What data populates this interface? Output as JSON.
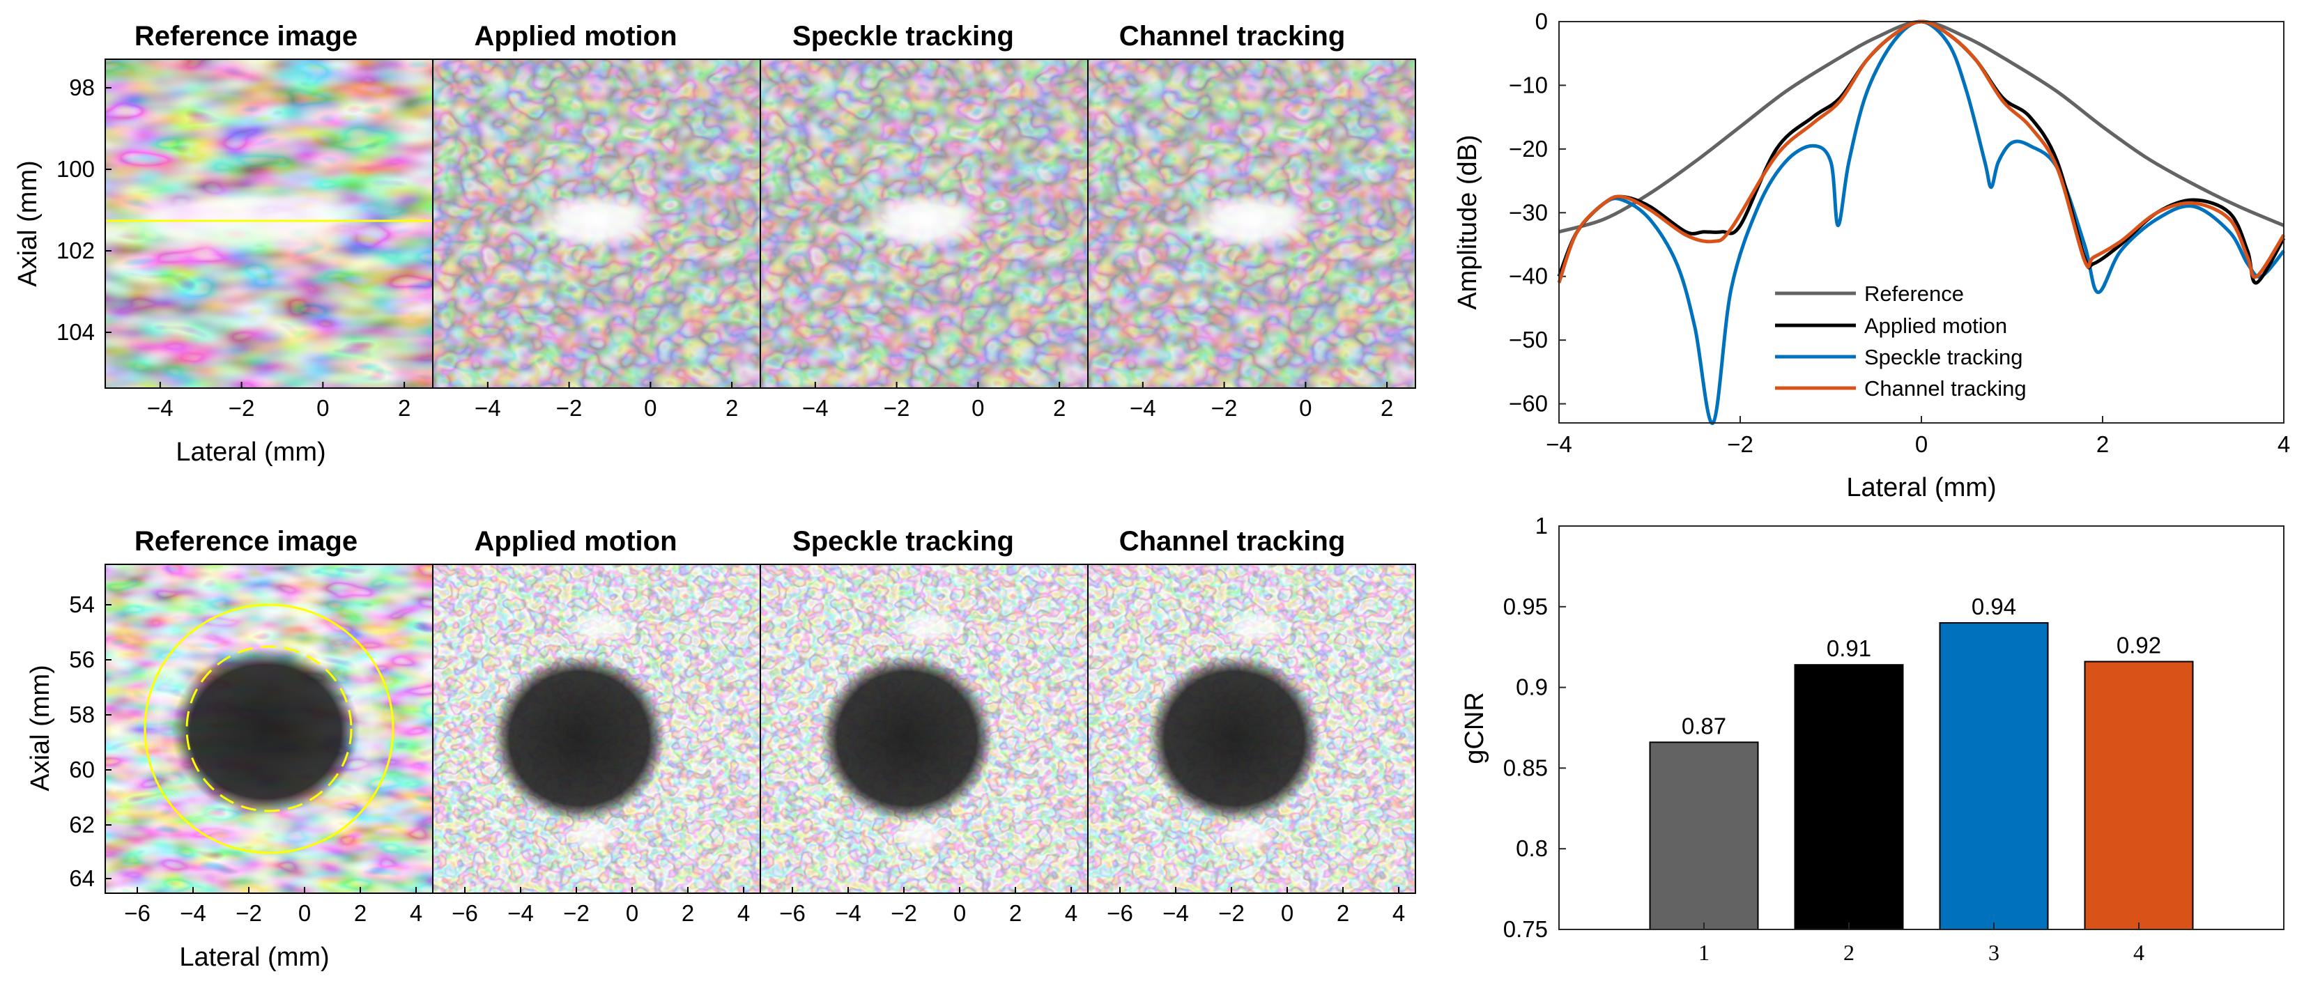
{
  "panels_top": {
    "titles": [
      "Reference image",
      "Applied motion",
      "Speckle tracking",
      "Channel tracking"
    ],
    "ylabel": "Axial (mm)",
    "xlabel": "Lateral (mm)",
    "yticks": [
      "98",
      "100",
      "102",
      "104"
    ],
    "xticks": [
      "−4",
      "−2",
      "0",
      "2"
    ]
  },
  "panels_bottom": {
    "titles": [
      "Reference image",
      "Applied motion",
      "Speckle tracking",
      "Channel tracking"
    ],
    "ylabel": "Axial (mm)",
    "xlabel": "Lateral (mm)",
    "yticks": [
      "54",
      "56",
      "58",
      "60",
      "62",
      "64"
    ],
    "xticks": [
      "−6",
      "−4",
      "−2",
      "0",
      "2",
      "4"
    ]
  },
  "colors": {
    "reference": "#636363",
    "applied": "#000000",
    "speckle": "#0072bd",
    "channel": "#d95319",
    "overlay": "#ffff00"
  },
  "chart_data": [
    {
      "type": "line",
      "title": "",
      "xlabel": "Lateral (mm)",
      "ylabel": "Amplitude (dB)",
      "xlim": [
        -4,
        4
      ],
      "ylim": [
        -63,
        0
      ],
      "xticks": [
        -4,
        -2,
        0,
        2,
        4
      ],
      "xtick_labels": [
        "−4",
        "−2",
        "0",
        "2",
        "4"
      ],
      "yticks": [
        0,
        -10,
        -20,
        -30,
        -40,
        -50,
        -60
      ],
      "ytick_labels": [
        "0",
        "−10",
        "−20",
        "−30",
        "−40",
        "−50",
        "−60"
      ],
      "legend": {
        "placement": "lower-center"
      },
      "series": [
        {
          "name": "Reference",
          "color_key": "reference",
          "x": [
            -4,
            -3.5,
            -3,
            -2.5,
            -2,
            -1.5,
            -1,
            -0.5,
            0,
            0.5,
            1,
            1.5,
            2,
            2.5,
            3,
            3.5,
            4
          ],
          "y": [
            -33,
            -31,
            -27,
            -22,
            -16.5,
            -11,
            -6.5,
            -2.5,
            0,
            -2.5,
            -6.5,
            -11,
            -16.5,
            -21.5,
            -25.5,
            -29,
            -32
          ]
        },
        {
          "name": "Applied motion",
          "color_key": "applied",
          "x": [
            -4,
            -3.8,
            -3.5,
            -3.3,
            -3,
            -2.6,
            -2.4,
            -2.2,
            -2,
            -1.6,
            -1.2,
            -0.9,
            -0.6,
            -0.3,
            0,
            0.3,
            0.6,
            0.9,
            1.2,
            1.5,
            1.8,
            1.9,
            2.2,
            2.6,
            3,
            3.4,
            3.6,
            3.7,
            4
          ],
          "y": [
            -40,
            -33,
            -28.5,
            -27.5,
            -29,
            -33,
            -33,
            -33,
            -32,
            -20,
            -15,
            -12,
            -6,
            -2,
            0,
            -2,
            -6,
            -12,
            -15,
            -22,
            -37,
            -38,
            -35,
            -30,
            -28,
            -30,
            -36,
            -41,
            -34
          ]
        },
        {
          "name": "Speckle tracking",
          "color_key": "speckle",
          "x": [
            -4,
            -3.8,
            -3.5,
            -3.3,
            -3,
            -2.7,
            -2.5,
            -2.3,
            -2.1,
            -1.8,
            -1.5,
            -1.2,
            -1,
            -0.92,
            -0.8,
            -0.6,
            -0.3,
            0,
            0.3,
            0.5,
            0.7,
            0.77,
            0.85,
            1,
            1.2,
            1.5,
            1.8,
            1.95,
            2.2,
            2.6,
            3,
            3.4,
            3.6,
            3.75,
            4
          ],
          "y": [
            -40,
            -33,
            -28.5,
            -28,
            -31,
            -38,
            -48,
            -63,
            -42,
            -29,
            -22,
            -19.5,
            -22,
            -32,
            -22,
            -11,
            -3,
            0,
            -3.5,
            -11,
            -22,
            -26,
            -22,
            -19,
            -19.5,
            -23,
            -35,
            -42.5,
            -36,
            -31,
            -29,
            -33,
            -38,
            -40,
            -36
          ]
        },
        {
          "name": "Channel tracking",
          "color_key": "channel",
          "x": [
            -4,
            -3.8,
            -3.5,
            -3.3,
            -3,
            -2.6,
            -2.3,
            -2.1,
            -1.6,
            -1.2,
            -0.9,
            -0.6,
            -0.3,
            0,
            0.3,
            0.6,
            0.9,
            1.2,
            1.5,
            1.8,
            1.9,
            2.2,
            2.6,
            3,
            3.4,
            3.6,
            3.7,
            4
          ],
          "y": [
            -41,
            -33,
            -28.5,
            -27.5,
            -29.5,
            -33.5,
            -34.5,
            -32.5,
            -21,
            -16,
            -12.5,
            -6,
            -2,
            0,
            -2,
            -6,
            -12.5,
            -16.5,
            -23,
            -37.5,
            -37,
            -34.5,
            -30,
            -28.5,
            -31,
            -37,
            -40,
            -33.5
          ]
        }
      ]
    },
    {
      "type": "bar",
      "title": "",
      "xlabel": "",
      "ylabel": "gCNR",
      "categories": [
        "1",
        "2",
        "3",
        "4"
      ],
      "values": [
        0.866,
        0.914,
        0.94,
        0.916
      ],
      "data_labels": [
        "0.87",
        "0.91",
        "0.94",
        "0.92"
      ],
      "bar_color_keys": [
        "reference",
        "applied",
        "speckle",
        "channel"
      ],
      "ylim": [
        0.75,
        1
      ],
      "yticks": [
        0.75,
        0.8,
        0.85,
        0.9,
        0.95,
        1
      ],
      "ytick_labels": [
        "0.75",
        "0.8",
        "0.85",
        "0.9",
        "0.95",
        "1"
      ]
    }
  ]
}
